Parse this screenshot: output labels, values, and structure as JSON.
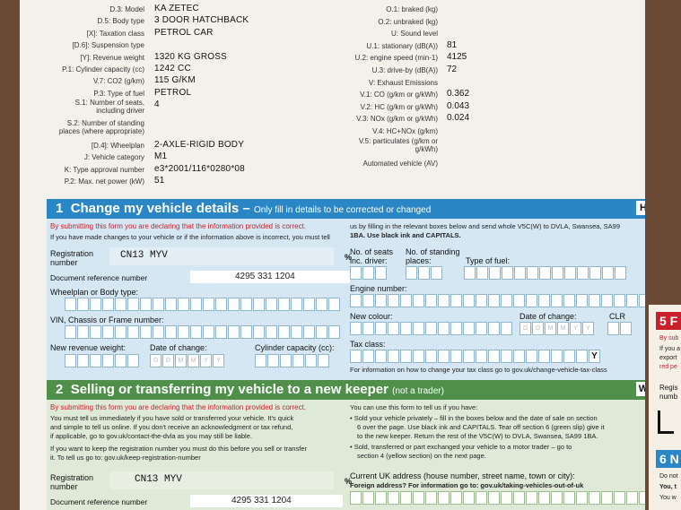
{
  "vehicle_left": [
    {
      "label": "D.3: Model",
      "value": "KA ZETEC"
    },
    {
      "label": "D.5: Body type",
      "value": "3 DOOR HATCHBACK"
    },
    {
      "label": "[X]: Taxation class",
      "value": "PETROL CAR"
    },
    {
      "label": "[D.6]: Suspension type",
      "value": ""
    },
    {
      "label": "[Y]: Revenue weight",
      "value": "1320 KG GROSS"
    },
    {
      "label": "P.1: Cylinder capacity (cc)",
      "value": "1242 CC"
    },
    {
      "label": "V.7: CO2 (g/km)",
      "value": "115 G/KM"
    },
    {
      "label": "P.3: Type of fuel",
      "value": "PETROL"
    },
    {
      "label": "S.1: Number of seats, including driver",
      "value": "4"
    },
    {
      "label": "S.2: Number of standing places (where appropriate)",
      "value": ""
    },
    {
      "label": "[D.4]: Wheelplan",
      "value": "2-AXLE-RIGID BODY"
    },
    {
      "label": "J: Vehicle category",
      "value": "M1"
    },
    {
      "label": "K: Type approval number",
      "value": "e3*2001/116*0280*08"
    },
    {
      "label": "P.2: Max. net power (kW)",
      "value": "51"
    }
  ],
  "vehicle_right": [
    {
      "label": "O.1: braked (kg)",
      "value": ""
    },
    {
      "label": "O.2: unbraked (kg)",
      "value": ""
    },
    {
      "label": "U: Sound level",
      "value": ""
    },
    {
      "label": "U.1: stationary (dB(A))",
      "value": "81"
    },
    {
      "label": "U.2: engine speed (min-1)",
      "value": "4125"
    },
    {
      "label": "U.3: drive-by (dB(A))",
      "value": "72"
    },
    {
      "label": "V: Exhaust Emissions",
      "value": ""
    },
    {
      "label": "V.1: CO (g/km or g/kWh)",
      "value": "0.362"
    },
    {
      "label": "V.2: HC (g/km or g/kWh)",
      "value": "0.043"
    },
    {
      "label": "V.3: NOx (g/km or g/kWh)",
      "value": "0.024"
    },
    {
      "label": "V.4: HC+NOx (g/km)",
      "value": ""
    },
    {
      "label": "V.5: particulates (g/km or g/kWh)",
      "value": ""
    },
    {
      "label": "Automated vehicle (AV)",
      "value": ""
    }
  ],
  "section1": {
    "number": "1",
    "title": "Change my vehicle details –",
    "subtitle": "Only fill in details to be corrected or changed",
    "letter": "H",
    "declaration": "By submitting this form you are declaring that the information provided is correct.",
    "intro": "If you have made changes to your vehicle or if the information above is incorrect, you must tell",
    "intro2": "us by filling in the relevant boxes below and send whole V5C(W) to DVLA, Swansea, SA99",
    "intro3": "1BA. Use black ink and CAPITALS.",
    "reg_label": "Registration number",
    "reg_value": "CN13 MYV",
    "doc_label": "Document reference number",
    "doc_value": "4295 331 1204",
    "wheelplan": "Wheelplan or Body type:",
    "vin": "VIN, Chassis or Frame number:",
    "revenue": "New revenue weight:",
    "date_change": "Date of change:",
    "cyl": "Cylinder capacity (cc):",
    "seats": "No. of seats inc. driver:",
    "standing": "No. of standing places:",
    "fuel": "Type of fuel:",
    "engine": "Engine number:",
    "colour": "New colour:",
    "date_change2": "Date of change:",
    "clr": "CLR",
    "tax": "Tax class:",
    "tax_y": "Y",
    "tax_info": "For information on how to change your tax class go to gov.uk/change-vehicle-tax-class",
    "ddmmyy": [
      "D",
      "D",
      "M",
      "M",
      "Y",
      "Y"
    ]
  },
  "section2": {
    "number": "2",
    "title": "Selling or transferring my vehicle to a new keeper",
    "subtitle": "(not a trader)",
    "letter": "W",
    "declaration": "By submitting this form you are declaring that the information provided is correct.",
    "p1": "You must tell us immediately if you have sold or transferred your vehicle. It's quick",
    "p2": "and simple to tell us online. If you don't receive an acknowledgment or tax refund,",
    "p3": "if applicable, go to gov.uk/contact-the-dvla as you may still be liable.",
    "p4": "If you want to keep the registration number you must do this before you sell or transfer",
    "p5": "it. To tell us go to: gov.uk/keep-registration-number",
    "r_intro": "You can use this form to tell us if you have:",
    "b1a": "• Sold your vehicle privately – fill in the boxes below and the date of sale on section",
    "b1b": "6 over the page. Use black ink and CAPITALS. Tear off section 6 (green slip) give it",
    "b1c": "to the new keeper. Return the rest of the V5C(W) to DVLA, Swansea, SA99 1BA.",
    "b2a": "• Sold, transferred or part exchanged your vehicle to a motor trader – go to",
    "b2b": "section 4 (yellow section) on the next page.",
    "addr": "Current UK address (house number, street name, town or city):",
    "foreign": "Foreign address? For information go to: gov.uk/taking-vehicles-out-of-uk",
    "reg_label": "Registration number",
    "reg_value": "CN13 MYV",
    "doc_label": "Document reference number",
    "doc_value": "4295 331 1204"
  },
  "right_page": {
    "s5": "5 F",
    "by_sub": "By sub",
    "if_you": "If you a",
    "export": "export",
    "red_pe": "red pe",
    "regis": "Regis",
    "numb": "numb",
    "s6": "6 N",
    "do_not": "Do not",
    "you_t": "You, t",
    "you_w": "You w"
  }
}
